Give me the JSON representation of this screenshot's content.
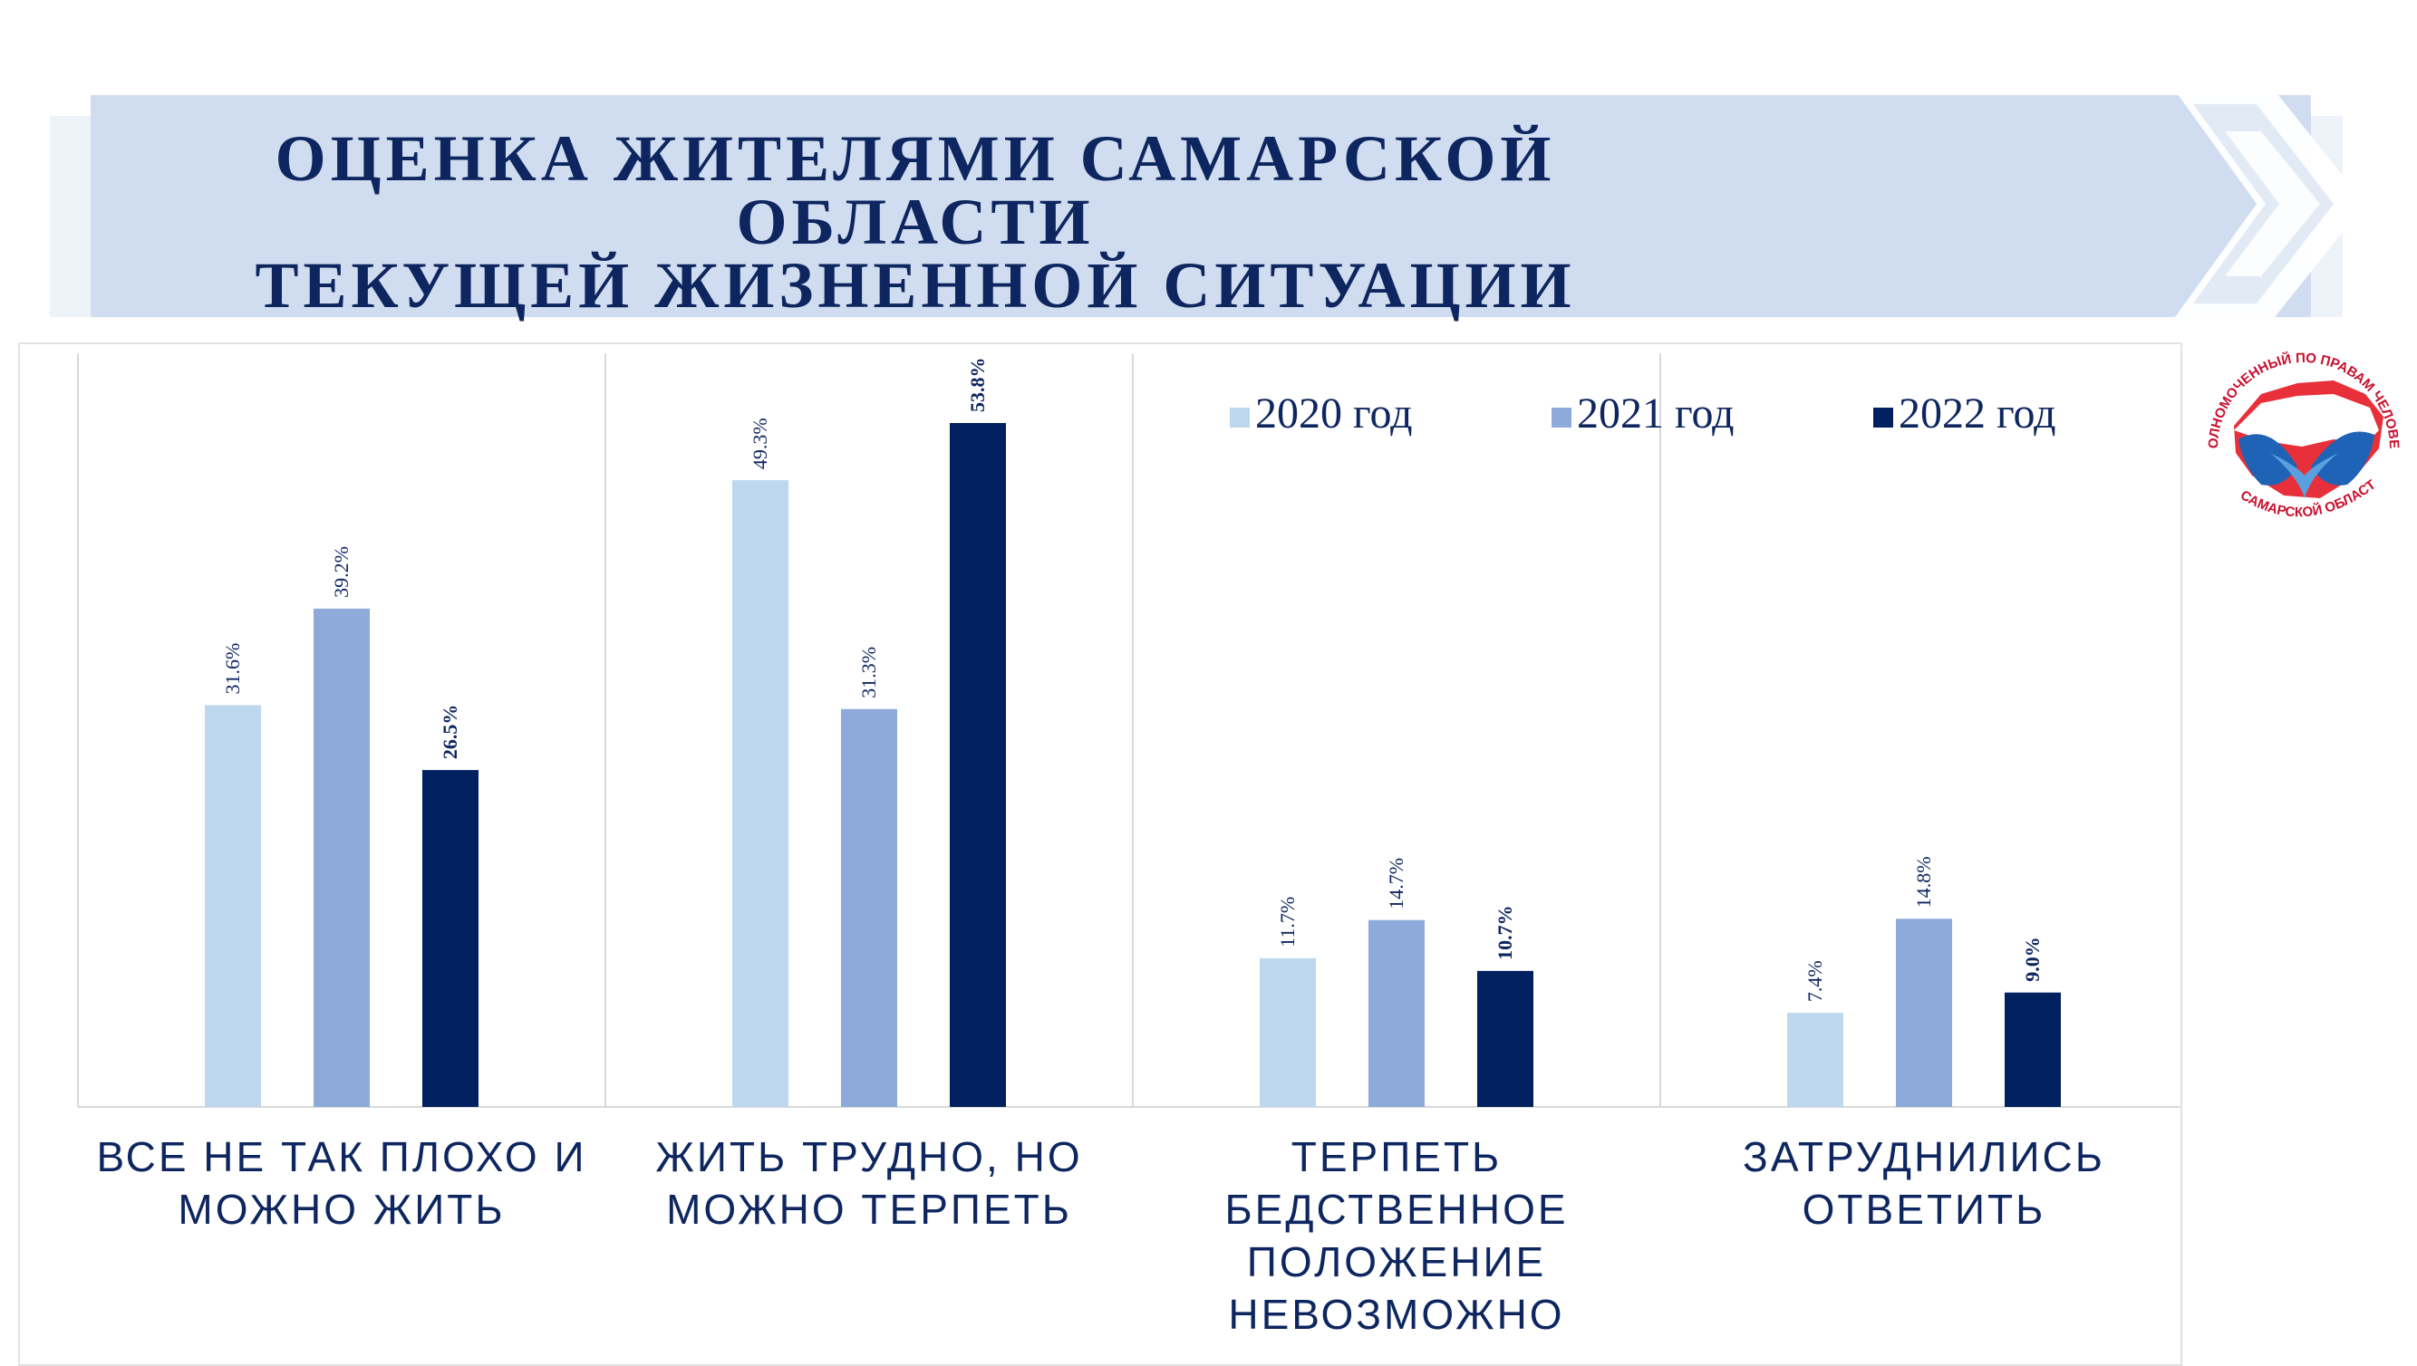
{
  "header": {
    "title_line1": "ОЦЕНКА ЖИТЕЛЯМИ САМАРСКОЙ ОБЛАСТИ",
    "title_line2": "ТЕКУЩЕЙ ЖИЗНЕННОЙ СИТУАЦИИ"
  },
  "logo": {
    "text_top": "УПОЛНОМОЧЕННЫЙ ПО ПРАВАМ ЧЕЛОВЕКА",
    "text_bottom": "В САМАРСКОЙ ОБЛАСТИ"
  },
  "colors": {
    "s2020": "#bdd7ee",
    "s2021": "#8eaadb",
    "s2022": "#002060",
    "text": "#0e2660",
    "banner": "#d0dcef"
  },
  "chart_data": {
    "type": "bar",
    "title": "ОЦЕНКА ЖИТЕЛЯМИ САМАРСКОЙ ОБЛАСТИ ТЕКУЩЕЙ ЖИЗНЕННОЙ СИТУАЦИИ",
    "categories": [
      [
        "ВСЕ НЕ ТАК ПЛОХО И",
        "МОЖНО ЖИТЬ"
      ],
      [
        "ЖИТЬ ТРУДНО, НО",
        "МОЖНО ТЕРПЕТЬ"
      ],
      [
        "ТЕРПЕТЬ",
        "БЕДСТВЕННОЕ",
        "ПОЛОЖЕНИЕ",
        "НЕВОЗМОЖНО"
      ],
      [
        "ЗАТРУДНИЛИСЬ",
        "ОТВЕТИТЬ"
      ]
    ],
    "series": [
      {
        "name": "2020 год",
        "values": [
          31.6,
          49.3,
          11.7,
          7.4
        ],
        "labels": [
          "31.6%",
          "49.3%",
          "11.7%",
          "7.4%"
        ],
        "bold": false
      },
      {
        "name": "2021 год",
        "values": [
          39.2,
          31.3,
          14.7,
          14.8
        ],
        "labels": [
          "39.2%",
          "31.3%",
          "14.7%",
          "14.8%"
        ],
        "bold": false
      },
      {
        "name": "2022 год",
        "values": [
          26.5,
          53.8,
          10.7,
          9.0
        ],
        "labels": [
          "26.5%",
          "53.8%",
          "10.7%",
          "9.0%"
        ],
        "bold": true
      }
    ],
    "ylim": [
      0,
      60
    ],
    "grid": "vertical category separators",
    "legend": "top-right",
    "xlabel": "",
    "ylabel": ""
  }
}
